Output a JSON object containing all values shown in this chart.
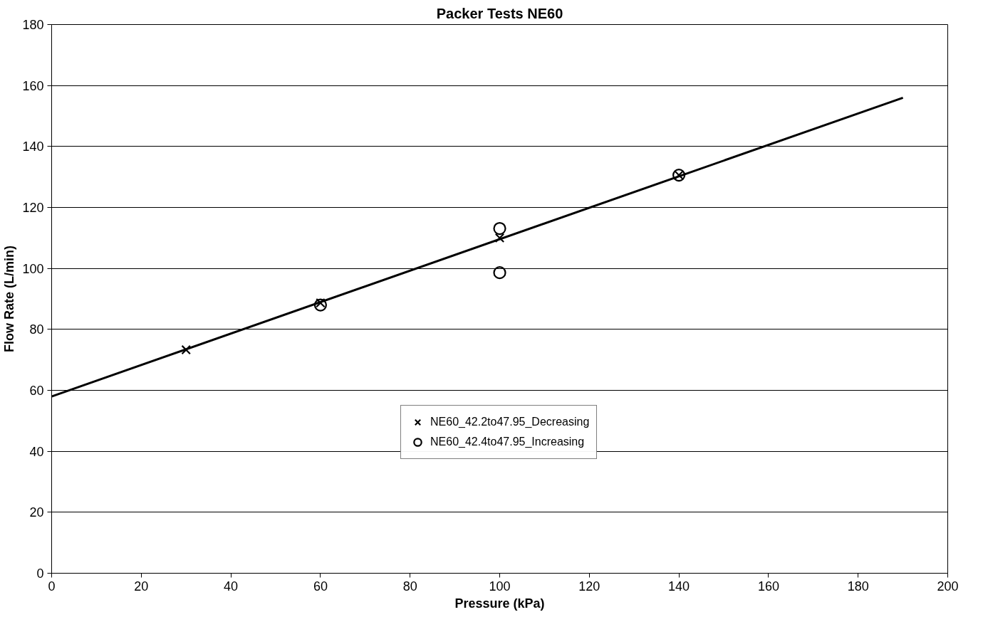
{
  "chart_data": {
    "type": "scatter",
    "title": "Packer Tests NE60",
    "xlabel": "Pressure (kPa)",
    "ylabel": "Flow Rate (L/min)",
    "xlim": [
      0,
      200
    ],
    "xticks": [
      0,
      20,
      40,
      60,
      80,
      100,
      120,
      140,
      160,
      180,
      200
    ],
    "ylim": [
      0,
      180
    ],
    "yticks": [
      0,
      20,
      40,
      60,
      80,
      100,
      120,
      140,
      160,
      180
    ],
    "grid": "y",
    "legend": "center",
    "series": [
      {
        "name": "NE60_42.2to47.95_Decreasing",
        "color": "#000000",
        "marker": "cross",
        "x": [
          30,
          60,
          100,
          140
        ],
        "values": [
          73.3,
          88.7,
          110,
          130.6
        ]
      },
      {
        "name": "NE60_42.4to47.95_Increasing",
        "color": "#000000",
        "marker": "circle",
        "x": [
          60,
          100,
          100,
          140
        ],
        "values": [
          88,
          113.1,
          98.6,
          130.6
        ]
      },
      {
        "type": "line",
        "color": "#000000",
        "x": [
          0,
          190
        ],
        "values": [
          58,
          156
        ]
      }
    ]
  }
}
